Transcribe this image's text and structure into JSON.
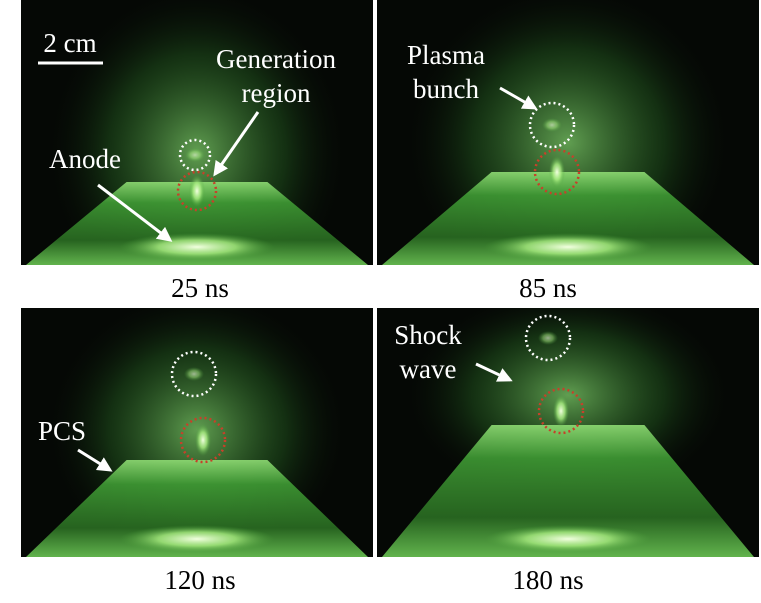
{
  "scale_bar": "2 cm",
  "panels": [
    {
      "time": "25 ns",
      "annotations": [
        {
          "lines": [
            "Generation",
            "region"
          ]
        },
        {
          "lines": [
            "Anode"
          ]
        }
      ]
    },
    {
      "time": "85 ns",
      "annotations": [
        {
          "lines": [
            "Plasma",
            "bunch"
          ]
        }
      ]
    },
    {
      "time": "120 ns",
      "annotations": [
        {
          "lines": [
            "PCS"
          ]
        }
      ]
    },
    {
      "time": "180 ns",
      "annotations": [
        {
          "lines": [
            "Shock",
            "wave"
          ]
        }
      ]
    }
  ]
}
